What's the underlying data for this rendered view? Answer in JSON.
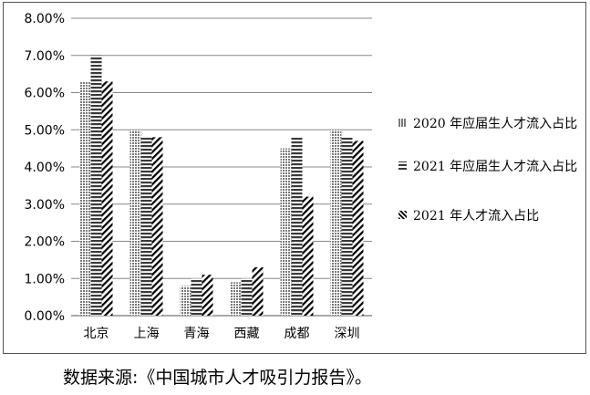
{
  "chart_data": {
    "type": "bar",
    "categories": [
      "北京",
      "上海",
      "青海",
      "西藏",
      "成都",
      "深圳"
    ],
    "series": [
      {
        "name": "2020 年应届生人才流入占比",
        "values": [
          6.3,
          5.0,
          0.8,
          0.9,
          4.5,
          5.0
        ]
      },
      {
        "name": "2021 年应届生人才流入占比",
        "values": [
          7.0,
          4.8,
          1.0,
          1.0,
          4.8,
          4.8
        ]
      },
      {
        "name": "2021 年人才流入占比",
        "values": [
          6.3,
          4.8,
          1.1,
          1.3,
          3.2,
          4.7
        ]
      }
    ],
    "ylim": [
      0,
      8
    ],
    "yticks": [
      "0.00%",
      "1.00%",
      "2.00%",
      "3.00%",
      "4.00%",
      "5.00%",
      "6.00%",
      "7.00%",
      "8.00%"
    ],
    "grid": true,
    "legend_position": "right"
  },
  "caption": "数据来源:《中国城市人才吸引力报告》。"
}
